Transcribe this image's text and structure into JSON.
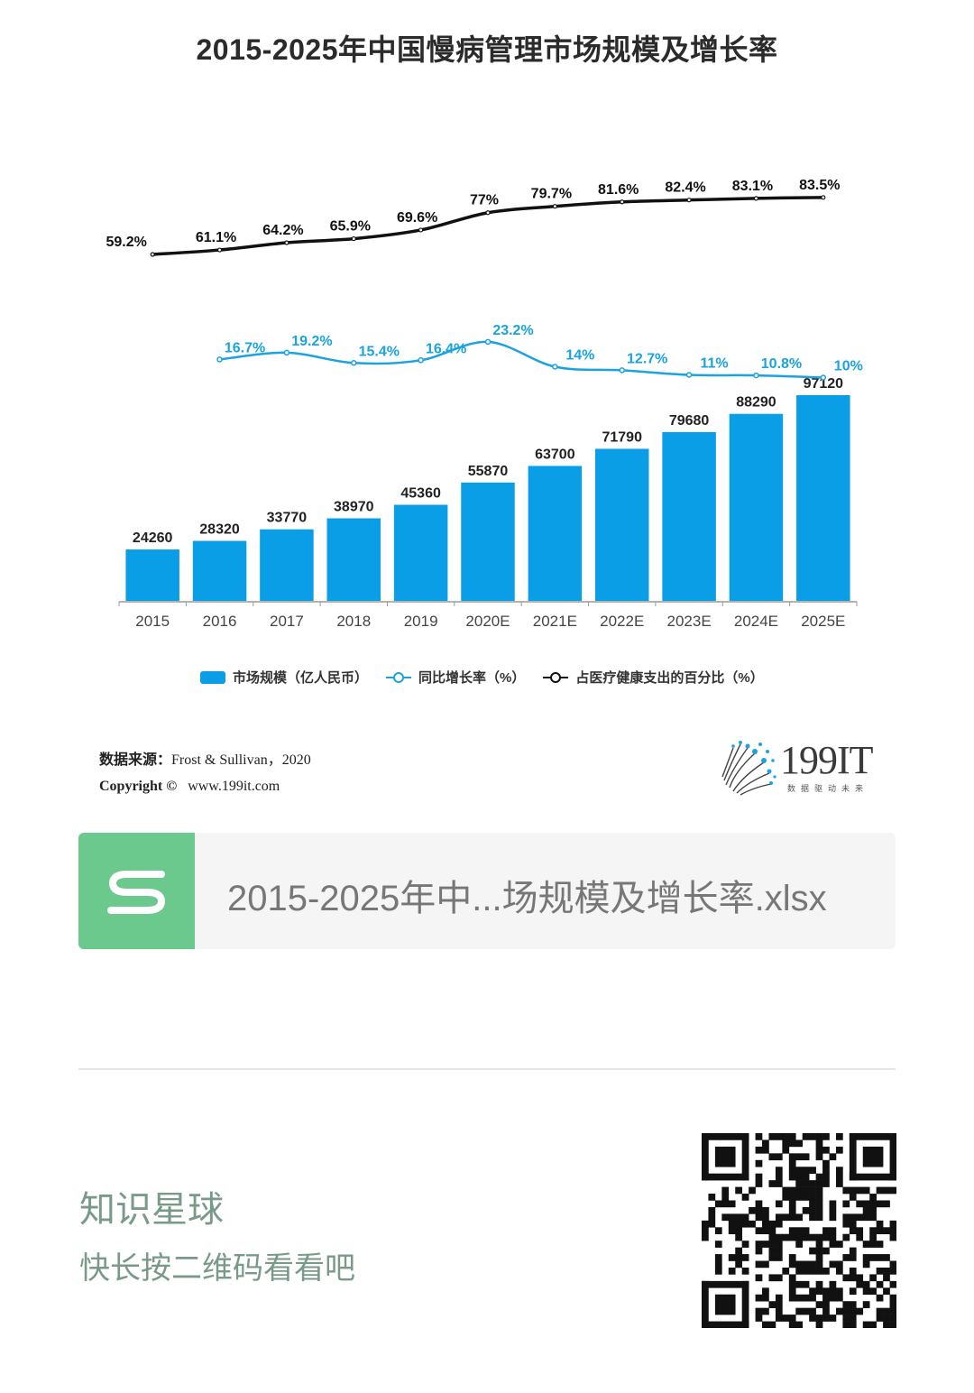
{
  "chart_data": {
    "type": "bar",
    "title": "2015-2025年中国慢病管理市场规模及增长率",
    "categories": [
      "2015",
      "2016",
      "2017",
      "2018",
      "2019",
      "2020E",
      "2021E",
      "2022E",
      "2023E",
      "2024E",
      "2025E"
    ],
    "series": [
      {
        "name": "市场规模（亿人民币）",
        "type": "bar",
        "color": "#0a9ee6",
        "values": [
          24260,
          28320,
          33770,
          38970,
          45360,
          55870,
          63700,
          71790,
          79680,
          88290,
          97120
        ],
        "labels": [
          "24260",
          "28320",
          "33770",
          "38970",
          "45360",
          "55870",
          "63700",
          "71790",
          "79680",
          "88290",
          "97120"
        ]
      },
      {
        "name": "同比增长率（%）",
        "type": "line",
        "color": "#1aa3e0",
        "values": [
          null,
          16.7,
          19.2,
          15.4,
          16.4,
          23.2,
          14,
          12.7,
          11,
          10.8,
          10
        ],
        "labels": [
          "",
          "16.7%",
          "19.2%",
          "15.4%",
          "16.4%",
          "23.2%",
          "14%",
          "12.7%",
          "11%",
          "10.8%",
          "10%"
        ]
      },
      {
        "name": "占医疗健康支出的百分比（%）",
        "type": "line",
        "color": "#111111",
        "values": [
          59.2,
          61.1,
          64.2,
          65.9,
          69.6,
          77,
          79.7,
          81.6,
          82.4,
          83.1,
          83.5
        ],
        "labels": [
          "59.2%",
          "61.1%",
          "64.2%",
          "65.9%",
          "69.6%",
          "77%",
          "79.7%",
          "81.6%",
          "82.4%",
          "83.1%",
          "83.5%"
        ]
      }
    ],
    "ylim_bar": [
      0,
      100000
    ],
    "ylim_growth": [
      0,
      30
    ],
    "ylim_share": [
      50,
      90
    ],
    "grid": false,
    "legend": "bottom"
  },
  "source": {
    "label": "数据来源：",
    "text": "Frost & Sullivan，2020",
    "copyright_label": "Copyright ©",
    "site": "www.199it.com"
  },
  "logo": {
    "text": "199IT",
    "tagline": "数据驱动未来"
  },
  "file_card": {
    "icon_letter": "S",
    "file_name": "2015-2025年中...场规模及增长率.xlsx"
  },
  "planet": {
    "title": "知识星球",
    "subtitle": "快长按二维码看看吧"
  }
}
